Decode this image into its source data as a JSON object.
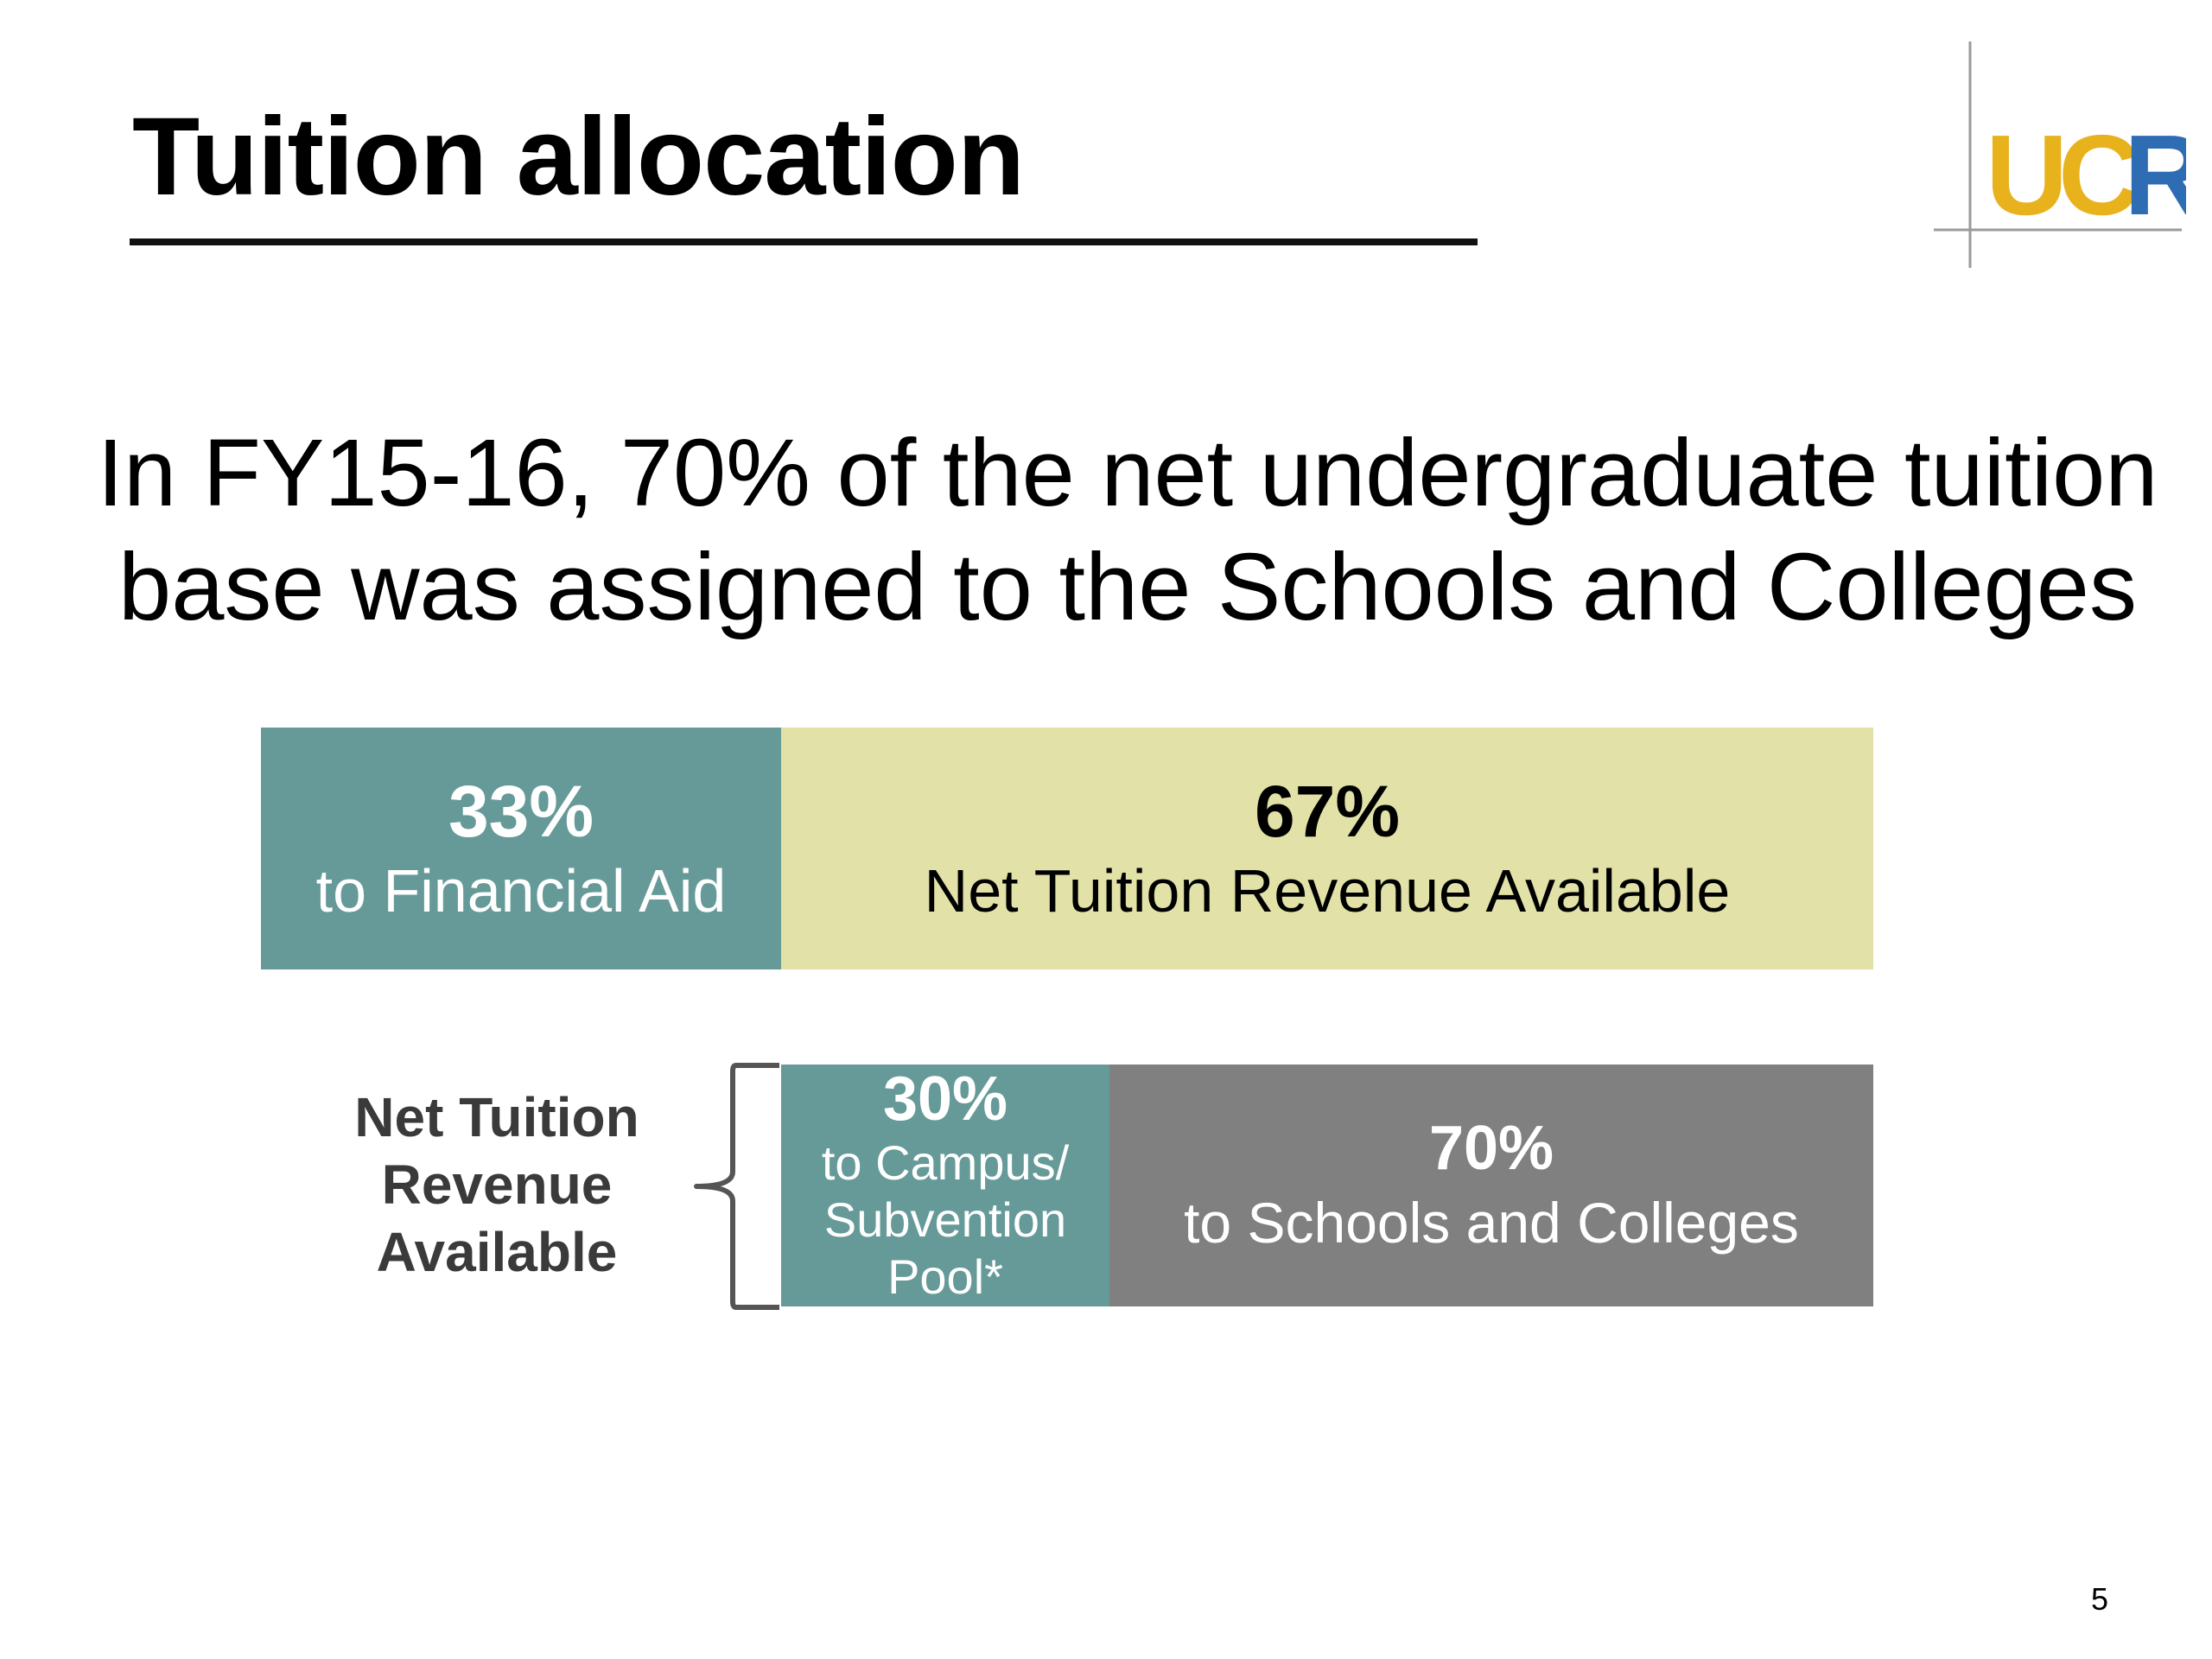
{
  "slide": {
    "title": "Tuition allocation",
    "headline": "In FY15-16, 70% of the net undergraduate tuition base was assigned to the Schools and Colleges",
    "page_number": "5",
    "logo": {
      "text": "UCR",
      "colors": {
        "yellow": "#E8B21C",
        "blue": "#2E6DB4",
        "rule": "#9a9a9a"
      }
    },
    "side_label": "Net Tuition Revenue Available"
  },
  "colors": {
    "teal": "#669A98",
    "light_yellow": "#E2E2A8",
    "gray": "#808080",
    "label_gray": "#3a3a3a",
    "brace_gray": "#555555"
  },
  "chart_data": [
    {
      "type": "bar",
      "orientation": "horizontal-stacked",
      "segments": [
        {
          "value": 33,
          "pct_label": "33%",
          "label": "to Financial Aid",
          "color": "#669A98"
        },
        {
          "value": 67,
          "pct_label": "67%",
          "label": "Net Tuition Revenue Available",
          "color": "#E2E2A8"
        }
      ]
    },
    {
      "type": "bar",
      "orientation": "horizontal-stacked",
      "category": "Net Tuition Revenue Available",
      "segments": [
        {
          "value": 30,
          "pct_label": "30%",
          "label": "to Campus/ Subvention Pool*",
          "label_lines": [
            "to Campus/",
            "Subvention",
            "Pool*"
          ],
          "color": "#669A98"
        },
        {
          "value": 70,
          "pct_label": "70%",
          "label": "to Schools and Colleges",
          "color": "#808080"
        }
      ]
    }
  ]
}
